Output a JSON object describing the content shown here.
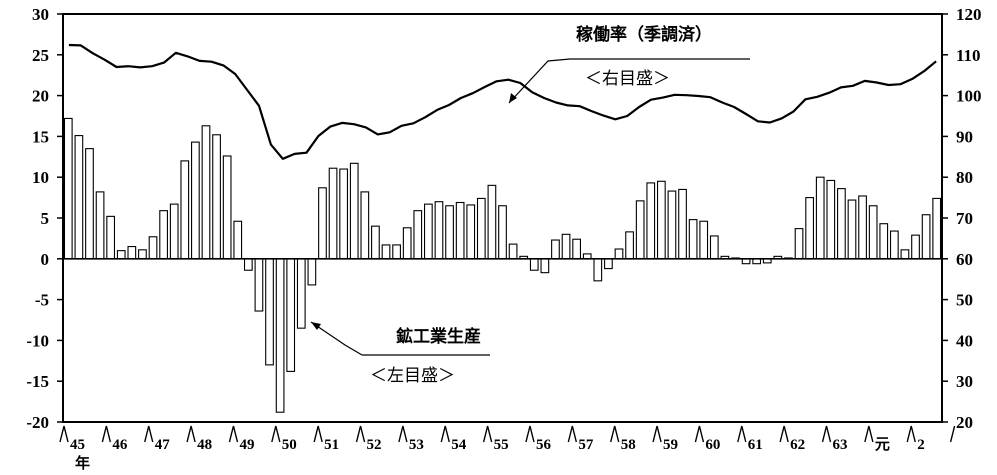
{
  "chart_data": {
    "type": "bar",
    "left_axis": {
      "min": -20,
      "max": 30,
      "ticks": [
        "30",
        "25",
        "20",
        "15",
        "10",
        "5",
        "0",
        "-5",
        "-10",
        "-15",
        "-20"
      ]
    },
    "right_axis": {
      "min": 20,
      "max": 120,
      "ticks": [
        "120",
        "110",
        "100",
        "90",
        "80",
        "70",
        "60",
        "50",
        "40",
        "30",
        "20"
      ]
    },
    "x_labels": [
      "45",
      "46",
      "47",
      "48",
      "49",
      "50",
      "51",
      "52",
      "53",
      "54",
      "55",
      "56",
      "57",
      "58",
      "59",
      "60",
      "61",
      "62",
      "63",
      "元",
      "2"
    ],
    "x_unit": "年",
    "quarters_per_year": 4,
    "series": [
      {
        "name": "鉱工業生産",
        "axis": "left",
        "kind": "bar",
        "values": [
          17.2,
          15.1,
          13.5,
          8.2,
          5.2,
          1.0,
          1.5,
          1.1,
          2.7,
          5.9,
          6.7,
          12.0,
          14.3,
          16.3,
          15.2,
          12.6,
          4.6,
          -1.4,
          -6.4,
          -13.0,
          -18.8,
          -13.8,
          -8.5,
          -3.2,
          8.7,
          11.1,
          11.0,
          11.7,
          8.2,
          4.0,
          1.7,
          1.7,
          3.8,
          5.9,
          6.7,
          7.0,
          6.5,
          6.9,
          6.6,
          7.4,
          9.0,
          6.5,
          1.8,
          0.3,
          -1.4,
          -1.7,
          2.3,
          3.0,
          2.4,
          0.6,
          -2.7,
          -1.2,
          1.2,
          3.3,
          7.1,
          9.3,
          9.5,
          8.3,
          8.5,
          4.8,
          4.6,
          2.8,
          0.3,
          0.1,
          -0.6,
          -0.6,
          -0.5,
          0.3,
          0.1,
          3.7,
          7.5,
          10.0,
          9.6,
          8.6,
          7.2,
          7.7,
          6.5,
          4.3,
          3.4,
          1.1,
          2.9,
          5.4,
          7.4
        ]
      },
      {
        "name": "稼働率（季調済）",
        "axis": "right",
        "kind": "line",
        "values": [
          112.4,
          112.3,
          110.4,
          108.8,
          107.0,
          107.2,
          106.9,
          107.2,
          108.1,
          110.5,
          109.6,
          108.5,
          108.3,
          107.4,
          105.3,
          101.4,
          97.5,
          88.0,
          84.5,
          85.7,
          86.0,
          90.1,
          92.4,
          93.3,
          93.0,
          92.2,
          90.5,
          91.0,
          92.6,
          93.2,
          94.7,
          96.5,
          97.7,
          99.4,
          100.6,
          102.1,
          103.5,
          103.9,
          103.1,
          100.8,
          99.4,
          98.3,
          97.6,
          97.4,
          96.2,
          95.1,
          94.2,
          95.0,
          97.2,
          99.0,
          99.5,
          100.2,
          100.1,
          99.9,
          99.6,
          98.3,
          97.2,
          95.5,
          93.7,
          93.4,
          94.4,
          96.1,
          99.1,
          99.7,
          100.7,
          102.0,
          102.4,
          103.6,
          103.2,
          102.6,
          102.8,
          104.1,
          106.0,
          108.4
        ]
      }
    ],
    "annotations": {
      "line_label": "稼働率（季調済）",
      "line_axis_note": "＜右目盛＞",
      "bar_label": "鉱工業生産",
      "bar_axis_note": "＜左目盛＞"
    },
    "grid": false
  }
}
